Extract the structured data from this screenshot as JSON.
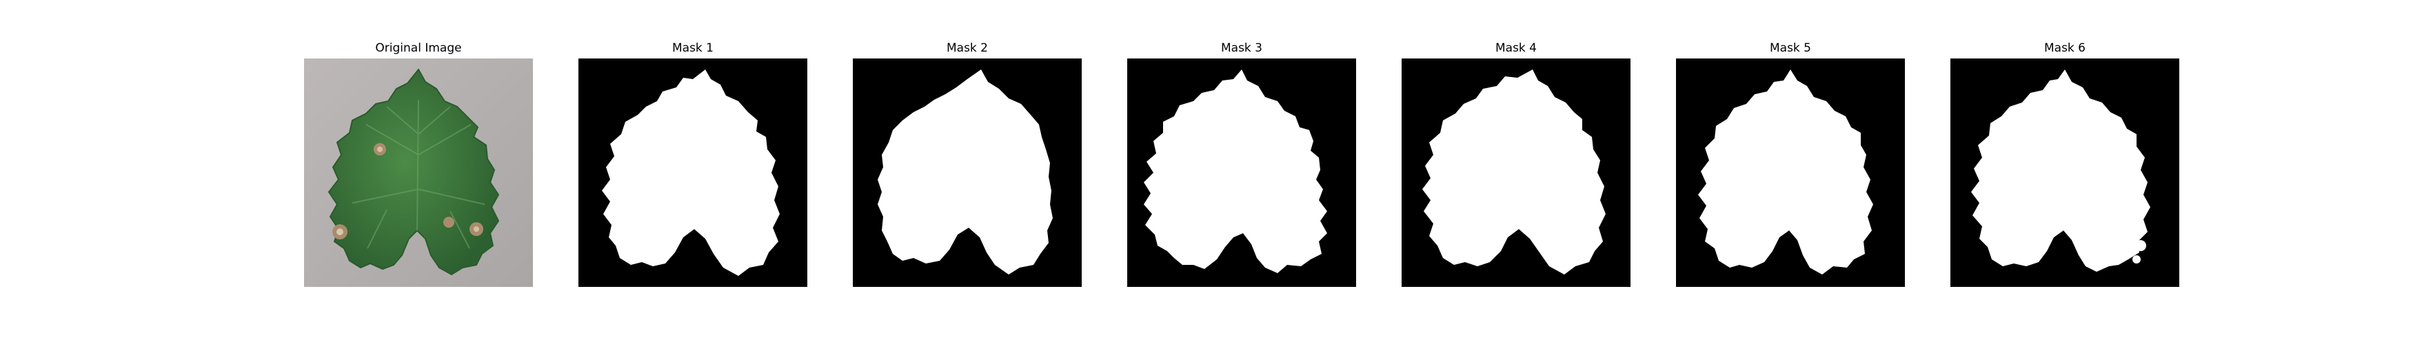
{
  "figure": {
    "panels": [
      {
        "title": "Original Image",
        "type": "photo",
        "subject": "grape leaf"
      },
      {
        "title": "Mask 1",
        "type": "mask"
      },
      {
        "title": "Mask 2",
        "type": "mask"
      },
      {
        "title": "Mask 3",
        "type": "mask"
      },
      {
        "title": "Mask 4",
        "type": "mask"
      },
      {
        "title": "Mask 5",
        "type": "mask"
      },
      {
        "title": "Mask 6",
        "type": "mask"
      }
    ]
  },
  "colors": {
    "background": "#ffffff",
    "mask_background": "#000000",
    "mask_foreground": "#ffffff",
    "photo_background": "#b7b3b2",
    "leaf_green": "#3f7b3e",
    "leaf_dark": "#2f6331",
    "spot_brown": "#a98c6d"
  }
}
